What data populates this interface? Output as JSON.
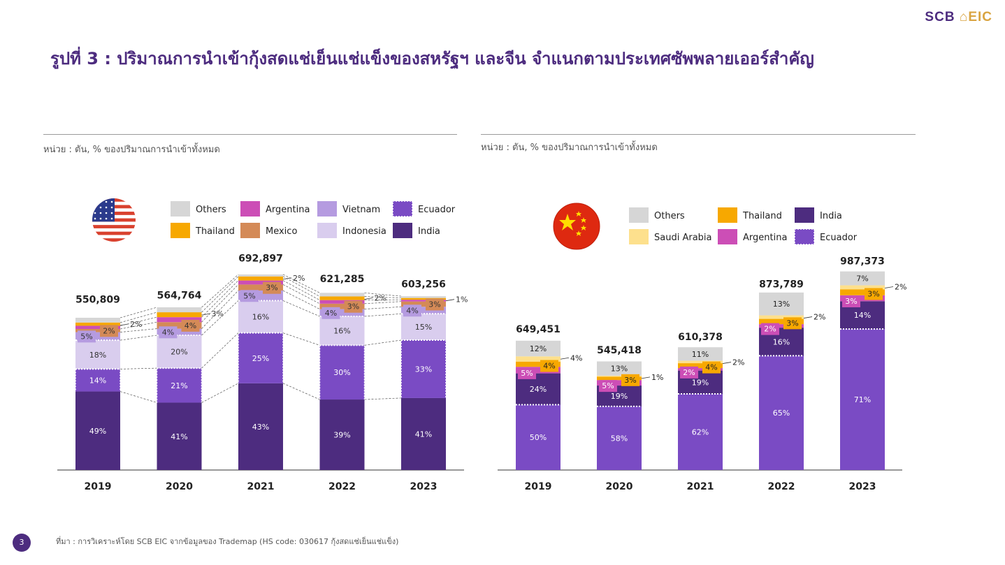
{
  "logo": {
    "part1": "SCB",
    "part2": "EIC"
  },
  "title": "รูปที่ 3 : ปริมาณการนำเข้ากุ้งสดแช่เย็นแช่แข็งของสหรัฐฯ และจีน  จำแนกตามประเทศซัพพลายเออร์สำคัญ",
  "footer": {
    "source": "ที่มา : การวิเคราะห์โดย SCB EIC จากข้อมูลของ Trademap (HS code: 030617 กุ้งสดแช่เย็นแช่แข็ง)",
    "page": "3"
  },
  "colors": {
    "India": "#4d2c7f",
    "Ecuador": "#7a4bc4",
    "Indonesia": "#d9cdee",
    "Vietnam": "#b59be0",
    "Mexico": "#d48a57",
    "Argentina": "#cc4eb6",
    "Thailand": "#f7a800",
    "Saudi Arabia": "#fde08d",
    "Others": "#d6d6d6",
    "brand": "#4d2c7f"
  },
  "chart_data": [
    {
      "type": "bar",
      "country": "US",
      "unit_label": "หน่วย : ตัน, % ของปริมาณการนำเข้าทั้งหมด",
      "categories": [
        "2019",
        "2020",
        "2021",
        "2022",
        "2023"
      ],
      "totals": [
        550809,
        564764,
        692897,
        621285,
        603256
      ],
      "total_labels": [
        "550,809",
        "564,764",
        "692,897",
        "621,285",
        "603,256"
      ],
      "legend": [
        "Others",
        "Argentina",
        "Vietnam",
        "Ecuador",
        "Thailand",
        "Mexico",
        "Indonesia",
        "India"
      ],
      "series": [
        {
          "name": "India",
          "values": [
            49,
            41,
            43,
            39,
            41
          ]
        },
        {
          "name": "Ecuador",
          "values": [
            14,
            21,
            25,
            30,
            33
          ]
        },
        {
          "name": "Indonesia",
          "values": [
            18,
            20,
            16,
            16,
            15
          ]
        },
        {
          "name": "Vietnam",
          "values": [
            5,
            4,
            5,
            4,
            4
          ]
        },
        {
          "name": "Mexico",
          "values": [
            2,
            4,
            3,
            3,
            3
          ]
        },
        {
          "name": "Argentina",
          "values": [
            2,
            3,
            2,
            2,
            1
          ]
        },
        {
          "name": "Thailand",
          "values": [
            2,
            3,
            2,
            2,
            1
          ]
        },
        {
          "name": "Others",
          "values": [
            3,
            3,
            1,
            2,
            1
          ]
        }
      ],
      "value_labels": [
        [
          "49%",
          "14%",
          "18%",
          "5%",
          "2%",
          "",
          "2%",
          ""
        ],
        [
          "41%",
          "21%",
          "20%",
          "4%",
          "4%",
          "",
          "3%",
          ""
        ],
        [
          "43%",
          "25%",
          "16%",
          "5%",
          "3%",
          "",
          "2%",
          ""
        ],
        [
          "39%",
          "30%",
          "16%",
          "4%",
          "3%",
          "",
          "2%",
          ""
        ],
        [
          "41%",
          "33%",
          "15%",
          "4%",
          "3%",
          "",
          "1%",
          ""
        ]
      ],
      "ylim": [
        0,
        720000
      ]
    },
    {
      "type": "bar",
      "country": "China",
      "unit_label": "หน่วย : ตัน, % ของปริมาณการนำเข้าทั้งหมด",
      "categories": [
        "2019",
        "2020",
        "2021",
        "2022",
        "2023"
      ],
      "totals": [
        649451,
        545418,
        610378,
        873789,
        987373
      ],
      "total_labels": [
        "649,451",
        "545,418",
        "610,378",
        "873,789",
        "987,373"
      ],
      "legend": [
        "Others",
        "Thailand",
        "India",
        "Saudi Arabia",
        "Argentina",
        "Ecuador"
      ],
      "series": [
        {
          "name": "Ecuador",
          "values": [
            50,
            58,
            62,
            65,
            71
          ]
        },
        {
          "name": "India",
          "values": [
            24,
            19,
            19,
            16,
            14
          ]
        },
        {
          "name": "Argentina",
          "values": [
            5,
            5,
            2,
            2,
            3
          ]
        },
        {
          "name": "Thailand",
          "values": [
            4,
            3,
            4,
            3,
            3
          ]
        },
        {
          "name": "Saudi Arabia",
          "values": [
            4,
            1,
            2,
            2,
            2
          ]
        },
        {
          "name": "Others",
          "values": [
            12,
            13,
            11,
            13,
            7
          ]
        }
      ],
      "value_labels": [
        [
          "50%",
          "24%",
          "5%",
          "4%",
          "4%",
          "12%"
        ],
        [
          "58%",
          "19%",
          "5%",
          "3%",
          "1%",
          "13%"
        ],
        [
          "62%",
          "19%",
          "2%",
          "4%",
          "2%",
          "11%"
        ],
        [
          "65%",
          "16%",
          "2%",
          "3%",
          "2%",
          "13%"
        ],
        [
          "71%",
          "14%",
          "3%",
          "3%",
          "2%",
          "7%"
        ]
      ],
      "ylim": [
        0,
        1000000
      ]
    }
  ]
}
